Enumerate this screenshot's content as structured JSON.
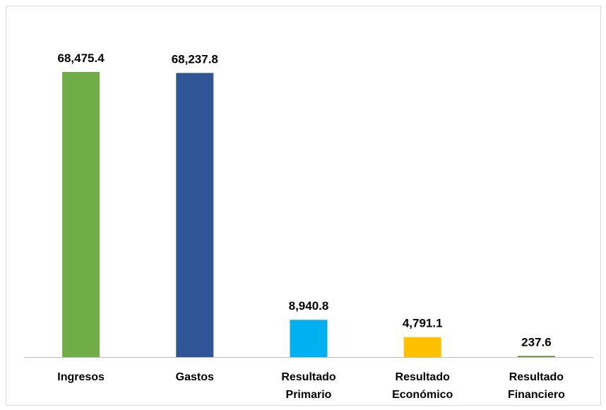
{
  "chart_data": {
    "type": "bar",
    "categories": [
      [
        "Ingresos"
      ],
      [
        "Gastos"
      ],
      [
        "Resultado",
        "Primario"
      ],
      [
        "Resultado",
        "Económico"
      ],
      [
        "Resultado",
        "Financiero"
      ]
    ],
    "values": [
      68475.4,
      68237.8,
      8940.8,
      4791.1,
      237.6
    ],
    "data_labels": [
      "68,475.4",
      "68,237.8",
      "8,940.8",
      "4,791.1",
      "237.6"
    ],
    "bar_colors": [
      "#70ad47",
      "#2f5597",
      "#00b0f0",
      "#ffc000",
      "#548235"
    ],
    "ylim": [
      0,
      68475.4
    ],
    "title": "",
    "xlabel": "",
    "ylabel": "",
    "grid": false,
    "legend": "none",
    "axis_color": "#bfbfbf",
    "frame_color": "#d9d9d9"
  }
}
